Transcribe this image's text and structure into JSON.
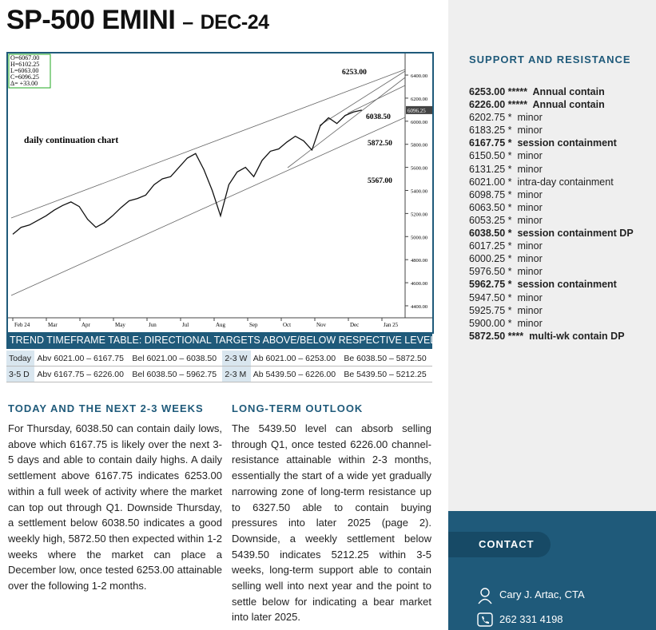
{
  "header": {
    "title": "SP-500 EMINI",
    "dash": "–",
    "subtitle": "DEC-24"
  },
  "chart": {
    "ohlc": [
      "O=6067.00",
      "H=6102.25",
      "L=6063.00",
      "C=6096.25",
      "Δ= +33.00"
    ],
    "caption": "daily continuation chart",
    "annotations": [
      {
        "text": "6253.00"
      },
      {
        "text": "6038.50"
      },
      {
        "text": "5872.50"
      },
      {
        "text": "5567.00"
      }
    ],
    "last_price": {
      "value": 6096.25,
      "label": "6096.25"
    },
    "ylim": [
      4296,
      6587
    ],
    "yticks": [
      {
        "value": 4400,
        "label": "4400.00"
      },
      {
        "value": 4600,
        "label": "4600.00"
      },
      {
        "value": 4800,
        "label": "4800.00"
      },
      {
        "value": 5000,
        "label": "5000.00"
      },
      {
        "value": 5200,
        "label": "5200.00"
      },
      {
        "value": 5400,
        "label": "5400.00"
      },
      {
        "value": 5600,
        "label": "5600.00"
      },
      {
        "value": 5800,
        "label": "5800.00"
      },
      {
        "value": 6000,
        "label": "6000.00"
      },
      {
        "value": 6200,
        "label": "6200.00"
      },
      {
        "value": 6400,
        "label": "6400.00"
      }
    ],
    "months": [
      "Feb 24",
      "Mar",
      "Apr",
      "May",
      "Jun",
      "Jul",
      "Aug",
      "Sep",
      "Oct",
      "Nov",
      "Dec",
      "Jan 25"
    ],
    "closes": [
      5020,
      5080,
      5100,
      5140,
      5180,
      5230,
      5270,
      5300,
      5260,
      5150,
      5080,
      5120,
      5180,
      5250,
      5310,
      5330,
      5360,
      5450,
      5500,
      5520,
      5600,
      5680,
      5720,
      5580,
      5400,
      5180,
      5450,
      5560,
      5600,
      5520,
      5660,
      5740,
      5760,
      5820,
      5870,
      5830,
      5750,
      5960,
      6030,
      5980,
      6050,
      6080,
      6096.25
    ]
  },
  "table": {
    "title": "TREND TIMEFRAME TABLE: DIRECTIONAL TARGETS ABOVE/BELOW RESPECTIVE LEVELS",
    "rows": [
      [
        "Today",
        "Abv 6021.00 – 6167.75",
        "Bel 6021.00 – 6038.50",
        "2-3 W",
        "Ab 6021.00 – 6253.00",
        "Be 6038.50 – 5872.50"
      ],
      [
        "3-5 D",
        "Abv 6167.75 – 6226.00",
        "Bel 6038.50 – 5962.75",
        "2-3 M",
        "Ab 5439.50 – 6226.00",
        "Be 5439.50 – 5212.25"
      ]
    ]
  },
  "sections": [
    {
      "heading": "TODAY AND THE NEXT 2-3 WEEKS",
      "text": "For Thursday, 6038.50 can contain daily lows, above which 6167.75 is likely over the next 3-5 days and able to contain daily highs. A daily settlement above 6167.75 indicates 6253.00 within a full week of activity where the market can top out through Q1. Downside Thursday, a settlement below 6038.50 indicates a good weekly high, 5872.50 then expected within 1-2 weeks where the market can place a December low, once tested 6253.00 attainable over the following 1-2 months."
    },
    {
      "heading": "LONG-TERM OUTLOOK",
      "text": "The 5439.50 level can absorb selling through Q1, once tested 6226.00 channel-resistance attainable within 2-3 months, essentially the start of a wide yet gradually narrowing zone of long-term resistance up to 6327.50 able to contain buying pressures into later 2025 (page 2). Downside, a weekly settlement below 5439.50 indicates 5212.25 within 3-5 weeks, long-term support able to contain selling well into next year and the point to settle below for indicating a bear market into later 2025."
    }
  ],
  "support_resistance": {
    "title": "SUPPORT AND RESISTANCE",
    "levels": [
      {
        "level": "6253.00 *****",
        "note": "Annual  contain",
        "bold": true
      },
      {
        "level": "6226.00 *****",
        "note": "Annual  contain",
        "bold": true
      },
      {
        "level": "6202.75 *",
        "note": "minor",
        "bold": false
      },
      {
        "level": "6183.25 *",
        "note": "minor",
        "bold": false
      },
      {
        "level": "6167.75 *",
        "note": "session containment",
        "bold": true
      },
      {
        "level": "6150.50 *",
        "note": "minor",
        "bold": false
      },
      {
        "level": "6131.25 *",
        "note": "minor",
        "bold": false
      },
      {
        "level": "6021.00 *",
        "note": "intra-day containment",
        "bold": false
      },
      {
        "level": "6098.75 *",
        "note": "minor",
        "bold": false
      },
      {
        "level": "6063.50 *",
        "note": "minor",
        "bold": false
      },
      {
        "level": "6053.25 *",
        "note": "minor",
        "bold": false
      },
      {
        "level": "6038.50 *",
        "note": "session containment DP",
        "bold": true
      },
      {
        "level": "6017.25 *",
        "note": "minor",
        "bold": false
      },
      {
        "level": "6000.25 *",
        "note": "minor",
        "bold": false
      },
      {
        "level": "5976.50 *",
        "note": "minor",
        "bold": false
      },
      {
        "level": "5962.75 *",
        "note": "session containment",
        "bold": true
      },
      {
        "level": "5947.50 *",
        "note": "minor",
        "bold": false
      },
      {
        "level": "5925.75 *",
        "note": "minor",
        "bold": false
      },
      {
        "level": "5900.00 *",
        "note": "minor",
        "bold": false
      },
      {
        "level": "5872.50 ****",
        "note": "multi-wk contain DP",
        "bold": true
      }
    ]
  },
  "contact": {
    "title": "CONTACT",
    "name": "Cary J. Artac, CTA",
    "phone": "262 331 4198"
  }
}
